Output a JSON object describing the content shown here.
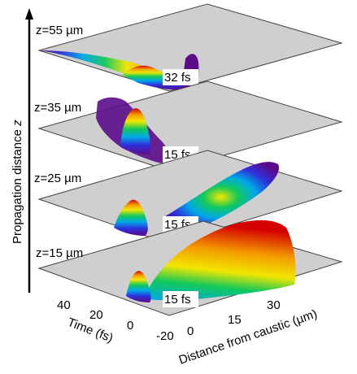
{
  "figure": {
    "vertical_axis_label": "Propagation distance",
    "vertical_axis_symbol": "z",
    "time_axis_label": "Time (fs)",
    "distance_axis_label": "Distance from caustic (µm)",
    "time_ticks": [
      "40",
      "20",
      "0",
      "-20"
    ],
    "distance_ticks": [
      "0",
      "15",
      "30"
    ],
    "colormap": [
      "#5b0b8a",
      "#2f2fd8",
      "#00a8e8",
      "#12c95a",
      "#f2e600",
      "#f39a00",
      "#d40000"
    ]
  },
  "panels": [
    {
      "z_label": "z=55 µm",
      "duration_label": "32 fs"
    },
    {
      "z_label": "z=35 µm",
      "duration_label": "15 fs"
    },
    {
      "z_label": "z=25 µm",
      "duration_label": "15 fs"
    },
    {
      "z_label": "z=15 µm",
      "duration_label": "15 fs"
    }
  ]
}
